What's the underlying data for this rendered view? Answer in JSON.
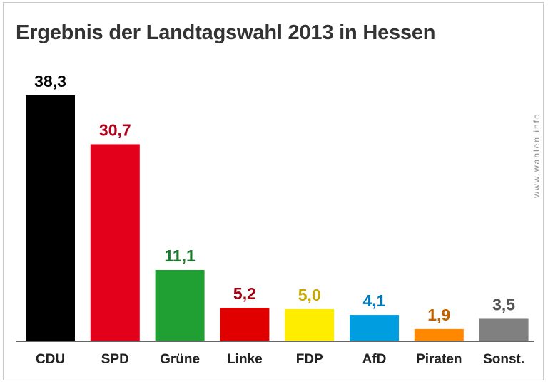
{
  "chart_data": {
    "type": "bar",
    "title": "Ergebnis der Landtagswahl 2013 in Hessen",
    "categories": [
      "CDU",
      "SPD",
      "Grüne",
      "Linke",
      "FDP",
      "AfD",
      "Piraten",
      "Sonst."
    ],
    "values": [
      38.3,
      30.7,
      11.1,
      5.2,
      5.0,
      4.1,
      1.9,
      3.5
    ],
    "value_labels": [
      "38,3",
      "30,7",
      "11,1",
      "5,2",
      "5,0",
      "4,1",
      "1,9",
      "3,5"
    ],
    "bar_colors": [
      "#000000",
      "#e3001b",
      "#20a032",
      "#e00000",
      "#ffed00",
      "#009ee0",
      "#ff8800",
      "#808080"
    ],
    "label_colors": [
      "#000000",
      "#b0001a",
      "#1c7a2c",
      "#a00010",
      "#c8a800",
      "#0077b8",
      "#c06000",
      "#555555"
    ],
    "ylim": [
      0,
      40
    ],
    "xlabel": "",
    "ylabel": "",
    "grid": false
  },
  "watermark": "www.wahlen.info"
}
